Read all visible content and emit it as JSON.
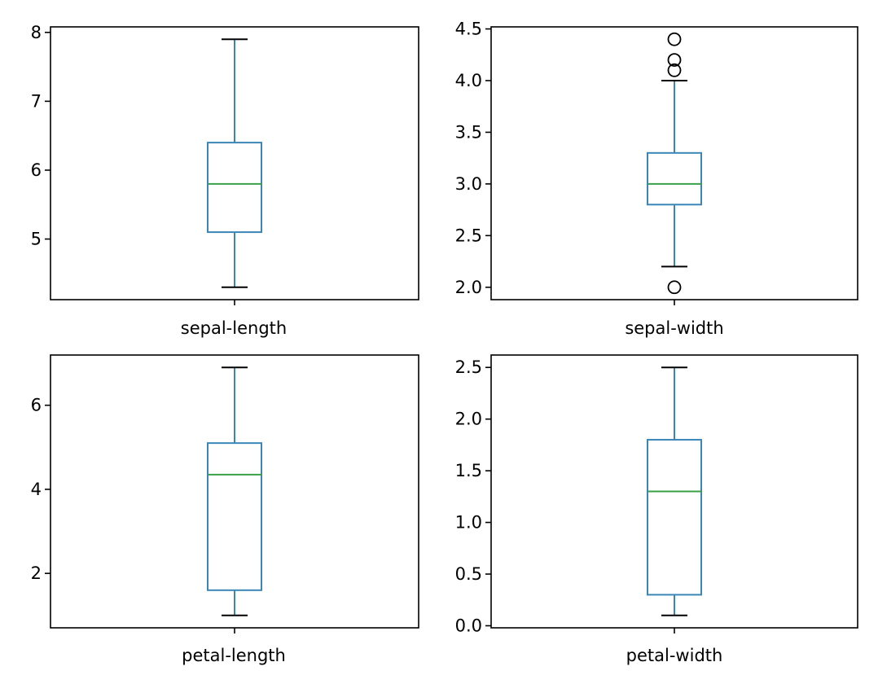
{
  "chart_data": [
    {
      "type": "box",
      "category": "sepal-length",
      "xlabel": "sepal-length",
      "ylim": [
        4.12,
        8.08
      ],
      "yticks": [
        5,
        6,
        7,
        8
      ],
      "tick_labels": [
        "5",
        "6",
        "7",
        "8"
      ],
      "whisker_low": 4.3,
      "q1": 5.1,
      "median": 5.8,
      "q3": 6.4,
      "whisker_high": 7.9,
      "outliers": []
    },
    {
      "type": "box",
      "category": "sepal-width",
      "xlabel": "sepal-width",
      "ylim": [
        1.88,
        4.52
      ],
      "yticks": [
        2.0,
        2.5,
        3.0,
        3.5,
        4.0,
        4.5
      ],
      "tick_labels": [
        "2.0",
        "2.5",
        "3.0",
        "3.5",
        "4.0",
        "4.5"
      ],
      "whisker_low": 2.2,
      "q1": 2.8,
      "median": 3.0,
      "q3": 3.3,
      "whisker_high": 4.0,
      "outliers": [
        2.0,
        4.1,
        4.2,
        4.4
      ]
    },
    {
      "type": "box",
      "category": "petal-length",
      "xlabel": "petal-length",
      "ylim": [
        0.705,
        7.195
      ],
      "yticks": [
        2,
        4,
        6
      ],
      "tick_labels": [
        "2",
        "4",
        "6"
      ],
      "whisker_low": 1.0,
      "q1": 1.6,
      "median": 4.35,
      "q3": 5.1,
      "whisker_high": 6.9,
      "outliers": []
    },
    {
      "type": "box",
      "category": "petal-width",
      "xlabel": "petal-width",
      "ylim": [
        -0.02,
        2.62
      ],
      "yticks": [
        0.0,
        0.5,
        1.0,
        1.5,
        2.0,
        2.5
      ],
      "tick_labels": [
        "0.0",
        "0.5",
        "1.0",
        "1.5",
        "2.0",
        "2.5"
      ],
      "whisker_low": 0.1,
      "q1": 0.3,
      "median": 1.3,
      "q3": 1.8,
      "whisker_high": 2.5,
      "outliers": []
    }
  ],
  "colors": {
    "box": "#3a87b7",
    "median": "#3aa046",
    "caps": "#000000",
    "outlier_edge": "#000000",
    "axes": "#000000"
  }
}
